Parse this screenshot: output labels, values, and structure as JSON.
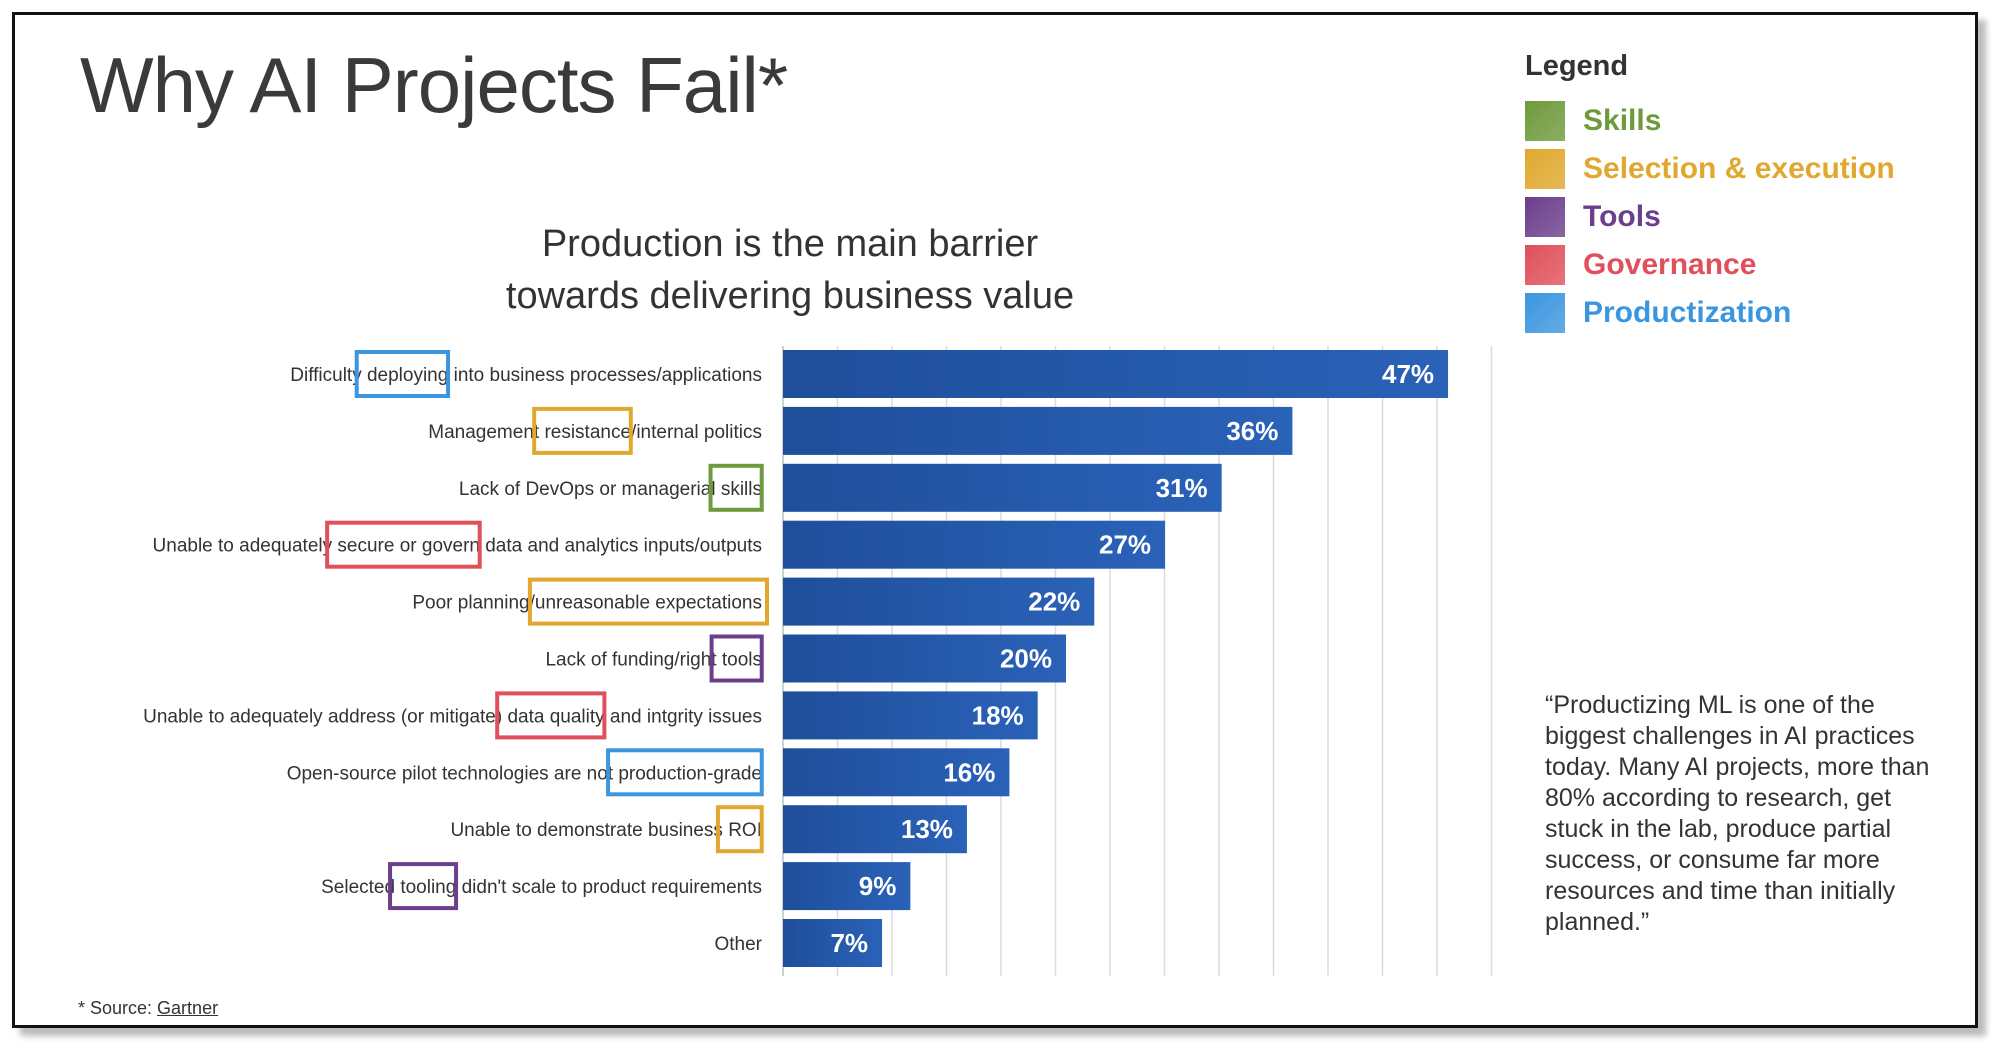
{
  "title": "Why AI Projects Fail*",
  "legend": {
    "title": "Legend",
    "items": [
      {
        "label": "Skills",
        "color": "#6f9a3c"
      },
      {
        "label": "Selection & execution",
        "color": "#e0a82e"
      },
      {
        "label": "Tools",
        "color": "#6b3f8c"
      },
      {
        "label": "Governance",
        "color": "#e0505a"
      },
      {
        "label": "Productization",
        "color": "#3b96e0"
      }
    ]
  },
  "quote": "“Productizing ML is one of the biggest challenges in AI practices today. Many AI projects, more than 80% according to research, get stuck in the lab, produce partial success, or consume far more resources and time than initially planned.”",
  "source": {
    "prefix": "* Source: ",
    "link": "Gartner"
  },
  "chart_data": {
    "type": "bar",
    "orientation": "horizontal",
    "title": "Production is the main barrier towards delivering business value",
    "title_lines": [
      "Production is the main barrier",
      "towards delivering business value"
    ],
    "bar_color": "#1f4e9a",
    "xlim": [
      0,
      50
    ],
    "categories": [
      "Difficulty deploying into business processes/applications",
      "Management resistance/internal politics",
      "Lack of DevOps or managerial skills",
      "Unable to adequately secure or govern data and analytics inputs/outputs",
      "Poor planning/unreasonable expectations",
      "Lack of funding/right tools",
      "Unable to adequately address (or mitigate) data quality and intgrity issues",
      "Open-source pilot technologies are not production-grade",
      "Unable to demonstrate business ROI",
      "Selected tooling didn't scale to product requirements",
      "Other"
    ],
    "values": [
      47,
      36,
      31,
      27,
      22,
      20,
      18,
      16,
      13,
      9,
      7
    ],
    "value_labels": [
      "47%",
      "36%",
      "31%",
      "27%",
      "22%",
      "20%",
      "18%",
      "16%",
      "13%",
      "9%",
      "7%"
    ],
    "highlights": [
      {
        "text": "deploying",
        "category": "Productization",
        "color": "#3b96e0"
      },
      {
        "text": "resistance",
        "category": "Selection & execution",
        "color": "#e0a82e"
      },
      {
        "text": "skills",
        "category": "Skills",
        "color": "#6f9a3c"
      },
      {
        "text": "secure or govern",
        "category": "Governance",
        "color": "#e0505a"
      },
      {
        "text": "unreasonable expectations",
        "category": "Selection & execution",
        "color": "#e0a82e"
      },
      {
        "text": "tools",
        "category": "Tools",
        "color": "#6b3f8c"
      },
      {
        "text": "data quality",
        "category": "Governance",
        "color": "#e0505a"
      },
      {
        "text": "production-grade",
        "category": "Productization",
        "color": "#3b96e0"
      },
      {
        "text": "ROI",
        "category": "Selection & execution",
        "color": "#e0a82e"
      },
      {
        "text": "tooling",
        "category": "Tools",
        "color": "#6b3f8c"
      },
      {
        "text": "",
        "category": "",
        "color": ""
      }
    ],
    "grid": true
  }
}
